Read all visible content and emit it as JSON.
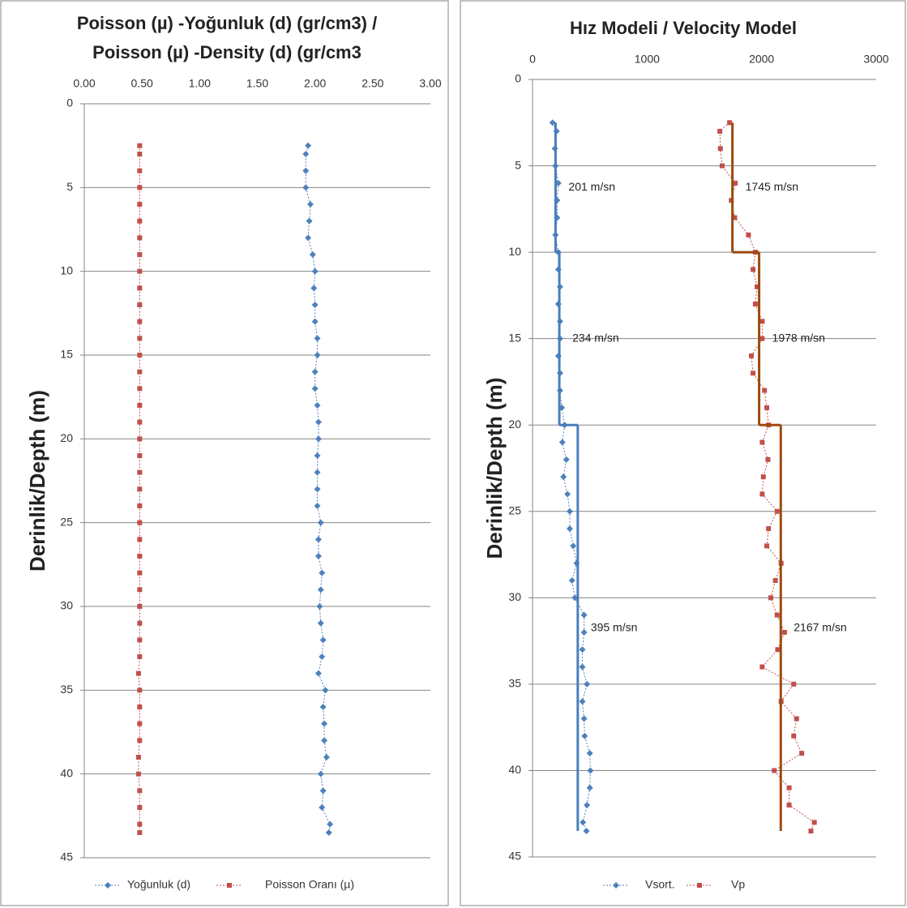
{
  "chart_data": [
    {
      "type": "line",
      "title": [
        "Poisson (µ) -Yoğunluk (d) (gr/cm3)  /",
        "Poisson (µ) -Density (d) (gr/cm3"
      ],
      "y_label": "Derinlik/Depth (m)",
      "y_inverted": true,
      "x_axis_position": "top",
      "grid": "y",
      "line_style": "dotted",
      "xlim": [
        0,
        3
      ],
      "xticks": [
        {
          "value": 0,
          "label": "0.00"
        },
        {
          "value": 0.5,
          "label": "0.50"
        },
        {
          "value": 1,
          "label": "1.00"
        },
        {
          "value": 1.5,
          "label": "1.50"
        },
        {
          "value": 2,
          "label": "2.00"
        },
        {
          "value": 2.5,
          "label": "2.50"
        },
        {
          "value": 3,
          "label": "3.00"
        }
      ],
      "ylim": [
        0,
        45
      ],
      "yticks": [
        0,
        5,
        10,
        15,
        20,
        25,
        30,
        35,
        40,
        45
      ],
      "y": [
        2.5,
        3,
        4,
        5,
        6,
        7,
        8,
        9,
        10,
        11,
        12,
        13,
        14,
        15,
        16,
        17,
        18,
        19,
        20,
        21,
        22,
        23,
        24,
        25,
        26,
        27,
        28,
        29,
        30,
        31,
        32,
        33,
        34,
        35,
        36,
        37,
        38,
        39,
        40,
        41,
        42,
        43,
        43.5
      ],
      "series": [
        {
          "name": "Yoğunluk (d)",
          "color": "#4f81bd",
          "marker": "diamond",
          "values": [
            1.94,
            1.92,
            1.92,
            1.92,
            1.96,
            1.95,
            1.94,
            1.98,
            2.0,
            1.99,
            2.0,
            2.0,
            2.02,
            2.02,
            2.0,
            2.0,
            2.02,
            2.03,
            2.03,
            2.02,
            2.02,
            2.02,
            2.02,
            2.05,
            2.03,
            2.03,
            2.06,
            2.05,
            2.04,
            2.05,
            2.07,
            2.06,
            2.03,
            2.09,
            2.07,
            2.08,
            2.08,
            2.1,
            2.05,
            2.07,
            2.06,
            2.13,
            2.12
          ]
        },
        {
          "name": "Poisson Oranı  (µ)",
          "color": "#c0504d",
          "marker": "square",
          "values": [
            0.48,
            0.48,
            0.48,
            0.48,
            0.48,
            0.48,
            0.48,
            0.48,
            0.48,
            0.48,
            0.48,
            0.48,
            0.48,
            0.48,
            0.48,
            0.48,
            0.48,
            0.48,
            0.48,
            0.48,
            0.48,
            0.48,
            0.48,
            0.48,
            0.48,
            0.48,
            0.48,
            0.48,
            0.48,
            0.48,
            0.48,
            0.48,
            0.47,
            0.48,
            0.48,
            0.48,
            0.48,
            0.47,
            0.47,
            0.48,
            0.48,
            0.48,
            0.48
          ]
        }
      ]
    },
    {
      "type": "line",
      "title": [
        "Hız Modeli / Velocity Model"
      ],
      "y_label": "Derinlik/Depth (m)",
      "y_inverted": true,
      "x_axis_position": "top",
      "grid": "y",
      "line_style": "dotted",
      "xlim": [
        0,
        3000
      ],
      "xticks": [
        0,
        1000,
        2000,
        3000
      ],
      "ylim": [
        0,
        45
      ],
      "yticks": [
        0,
        5,
        10,
        15,
        20,
        25,
        30,
        35,
        40,
        45
      ],
      "y": [
        2.5,
        3,
        4,
        5,
        6,
        7,
        8,
        9,
        10,
        11,
        12,
        13,
        14,
        15,
        16,
        17,
        18,
        19,
        20,
        21,
        22,
        23,
        24,
        25,
        26,
        27,
        28,
        29,
        30,
        31,
        32,
        33,
        34,
        35,
        36,
        37,
        38,
        39,
        40,
        41,
        42,
        43,
        43.5
      ],
      "series": [
        {
          "name": "Vsort.",
          "color": "#4f81bd",
          "marker": "diamond",
          "values": [
            175,
            210,
            195,
            200,
            225,
            215,
            215,
            200,
            225,
            225,
            240,
            225,
            240,
            240,
            225,
            240,
            240,
            255,
            280,
            260,
            295,
            270,
            305,
            325,
            325,
            355,
            385,
            345,
            370,
            450,
            450,
            435,
            435,
            475,
            435,
            450,
            455,
            500,
            505,
            500,
            475,
            440,
            470
          ]
        },
        {
          "name": "Vp",
          "color": "#c0504d",
          "marker": "square",
          "values": [
            1720,
            1635,
            1640,
            1655,
            1770,
            1735,
            1765,
            1885,
            1945,
            1925,
            1960,
            1945,
            2005,
            2005,
            1910,
            1925,
            2025,
            2045,
            2060,
            2005,
            2055,
            2015,
            2005,
            2135,
            2060,
            2045,
            2170,
            2120,
            2080,
            2135,
            2200,
            2140,
            2005,
            2280,
            2170,
            2305,
            2280,
            2350,
            2110,
            2240,
            2240,
            2460,
            2430
          ]
        }
      ],
      "layers": [
        {
          "color": "#4a7ebb",
          "depths": [
            2.5,
            10,
            20,
            43.5
          ],
          "values": [
            201,
            234,
            395
          ],
          "value_labels": [
            "201 m/sn",
            "234 m/sn",
            "395 m/sn"
          ]
        },
        {
          "color": "#9c4a0e",
          "depths": [
            2.5,
            10,
            20,
            43.5
          ],
          "values": [
            1745,
            1978,
            2167
          ],
          "value_labels": [
            "1745 m/sn",
            "1978 m/sn",
            "2167 m/sn"
          ]
        }
      ]
    }
  ]
}
